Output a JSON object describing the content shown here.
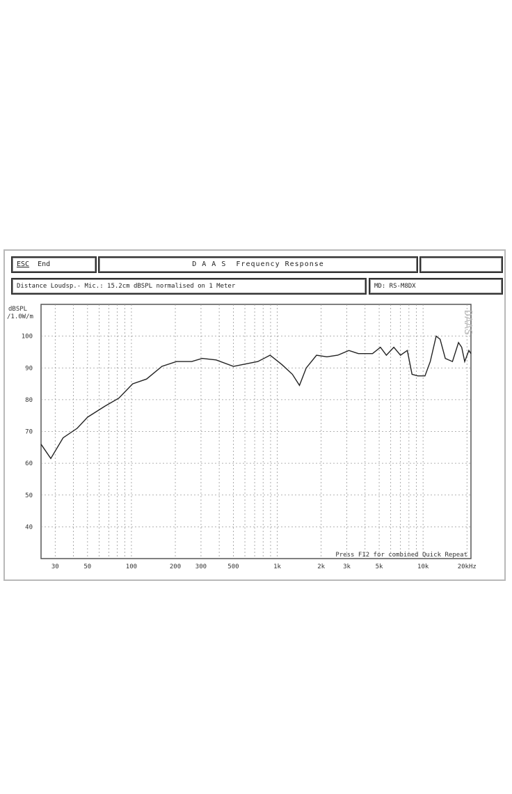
{
  "header": {
    "esc_key": "ESC",
    "esc_label": "End",
    "title": "D A A S  Frequency Response",
    "right_box": ""
  },
  "info": {
    "description": "Distance Loudsp.- Mic.: 15.2cm dBSPL normalised on 1 Meter",
    "model": "MD: RS-M8DX"
  },
  "watermark": "DAAS",
  "footer_note": "Press F12 for combined Quick Repeat",
  "chart_data": {
    "type": "line",
    "title": "D A A S  Frequency Response",
    "ylabel": "dBSPL /1.0W/m",
    "xlabel": "",
    "xscale": "log",
    "xlim": [
      24,
      21300
    ],
    "ylim": [
      30,
      110
    ],
    "grid": true,
    "x_tick_values": [
      30,
      50,
      100,
      200,
      300,
      500,
      1000,
      2000,
      3000,
      5000,
      10000,
      20000
    ],
    "x_tick_labels": [
      "30",
      "50",
      "100",
      "200",
      "300",
      "500",
      "1k",
      "2k",
      "3k",
      "5k",
      "10k",
      "20kHz"
    ],
    "y_tick_values": [
      100,
      90,
      80,
      70,
      60,
      50,
      40
    ],
    "y_tick_labels": [
      "100",
      "90",
      "80",
      "70",
      "60",
      "50",
      "40"
    ],
    "series": [
      {
        "color": "#222222",
        "x": [
          24,
          28,
          34,
          42.5,
          50,
          66,
          82,
          102,
          127,
          162,
          204,
          259,
          306,
          381,
          501,
          736,
          894,
          1080,
          1270,
          1420,
          1580,
          1860,
          2190,
          2600,
          3100,
          3600,
          4500,
          5100,
          5600,
          6300,
          7000,
          7800,
          8400,
          9200,
          10300,
          11200,
          12300,
          13100,
          14200,
          15900,
          17500,
          18400,
          19300,
          20600,
          21300
        ],
        "y": [
          66,
          61.5,
          68,
          71,
          74.5,
          78,
          80.5,
          85,
          86.5,
          90.5,
          92,
          92,
          93,
          92.5,
          90.5,
          92,
          94,
          91,
          88,
          84.5,
          90,
          94,
          93.5,
          94,
          95.5,
          94.5,
          94.5,
          96.5,
          94,
          96.5,
          94,
          95.5,
          88,
          87.5,
          87.5,
          92,
          100,
          99,
          93,
          92,
          98,
          96.5,
          92,
          95.5,
          94.5
        ]
      }
    ]
  }
}
